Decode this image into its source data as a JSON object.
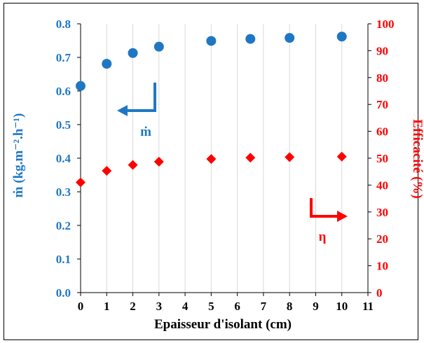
{
  "colors": {
    "mdot": "#1f77c4",
    "eta": "#ff0000",
    "axis": "#000000",
    "grid": "#d9d9d9"
  },
  "chart_data": {
    "type": "scatter",
    "xlabel": "Epaisseur d'isolant (cm)",
    "ylabel_left": "ṁ (kg.m⁻².h⁻¹)",
    "ylabel_right": "Efficacité (%)",
    "xlim": [
      0,
      11
    ],
    "ylim_left": [
      0.0,
      0.8
    ],
    "ylim_right": [
      0,
      100
    ],
    "xticks": [
      "0",
      "1",
      "2",
      "3",
      "4",
      "5",
      "6",
      "7",
      "8",
      "9",
      "10",
      "11"
    ],
    "yticks_left": [
      "0.0",
      "0.1",
      "0.2",
      "0.3",
      "0.4",
      "0.5",
      "0.6",
      "0.7",
      "0.8"
    ],
    "yticks_right": [
      "0",
      "10",
      "20",
      "30",
      "40",
      "50",
      "60",
      "70",
      "80",
      "90",
      "100"
    ],
    "grid": "vertical",
    "series": [
      {
        "name": "ṁ",
        "axis": "left",
        "marker": "circle",
        "x": [
          0,
          1,
          2,
          3,
          5,
          6.5,
          8,
          10
        ],
        "y": [
          0.615,
          0.681,
          0.713,
          0.732,
          0.749,
          0.755,
          0.758,
          0.762
        ]
      },
      {
        "name": "η",
        "axis": "right",
        "marker": "diamond",
        "x": [
          0,
          1,
          2,
          3,
          5,
          6.5,
          8,
          10
        ],
        "y": [
          41.0,
          45.3,
          47.5,
          48.7,
          49.7,
          50.2,
          50.4,
          50.6
        ]
      }
    ],
    "annotations": [
      {
        "text": "ṁ",
        "arrow": "left",
        "series": "ṁ"
      },
      {
        "text": "η",
        "arrow": "right",
        "series": "η"
      }
    ]
  }
}
